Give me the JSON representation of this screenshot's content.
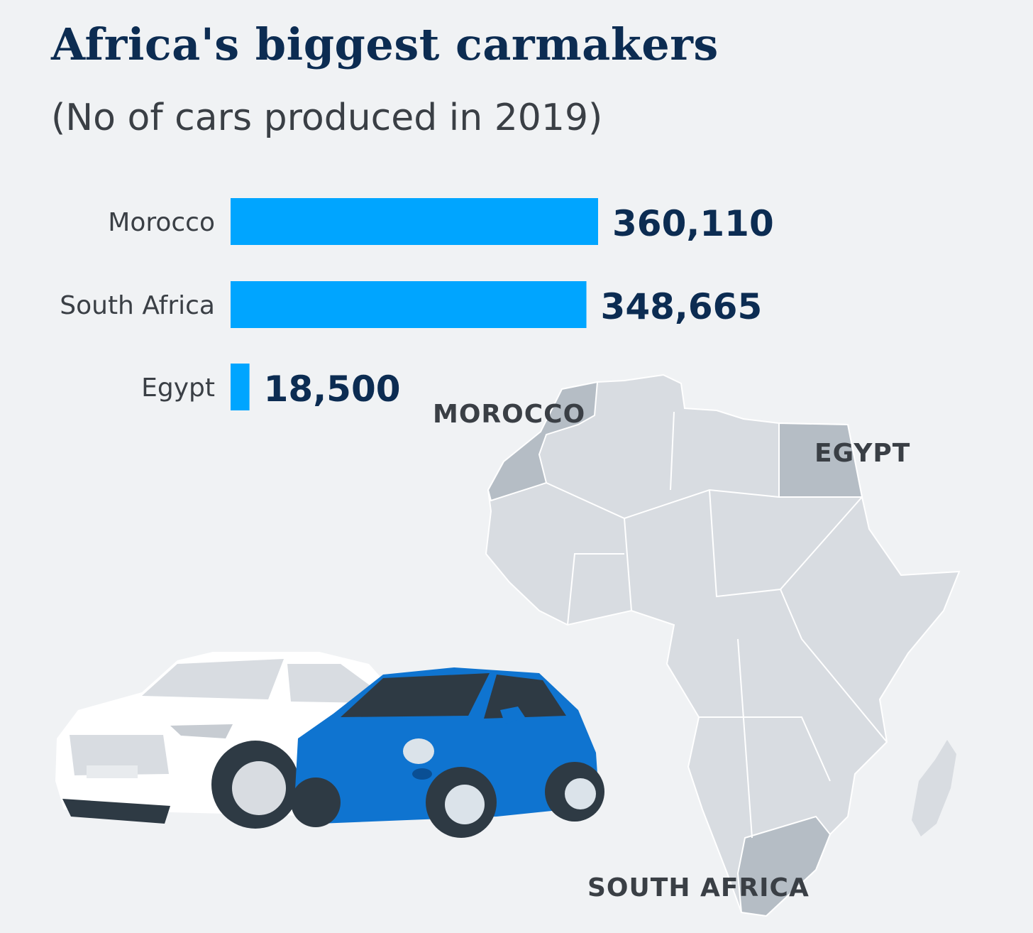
{
  "title": "Africa's biggest carmakers",
  "subtitle": "(No of cars produced in 2019)",
  "colors": {
    "bar": "#00a5ff",
    "title": "#0c2c52",
    "text": "#3a3f45",
    "background": "#f0f2f4",
    "map_land": "#d8dce1",
    "map_highlight": "#b5bdc5"
  },
  "chart_data": {
    "type": "bar",
    "orientation": "horizontal",
    "categories": [
      "Morocco",
      "South Africa",
      "Egypt"
    ],
    "values": [
      360110,
      348665,
      18500
    ],
    "value_labels": [
      "360,110",
      "348,665",
      "18,500"
    ],
    "title": "Africa's biggest carmakers",
    "subtitle": "(No of cars produced in 2019)",
    "xlabel": "",
    "ylabel": "",
    "grid": false
  },
  "map_labels": [
    "MOROCCO",
    "EGYPT",
    "SOUTH AFRICA"
  ],
  "illustration": {
    "description_icons": [
      "africa-map",
      "white-suv-icon",
      "blue-hatchback-icon"
    ]
  }
}
